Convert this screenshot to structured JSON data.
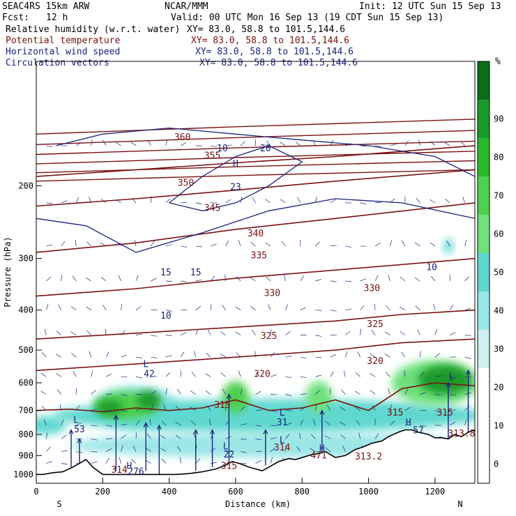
{
  "header": {
    "model": "SEAC4RS 15km ARW",
    "source": "NCAR/MMM",
    "init": "Init: 12 UTC Sun 15 Sep 13",
    "fcst_label": "Fcst:",
    "fcst_value": "12 h",
    "valid": "Valid: 00 UTC Mon 16 Sep 13 (19 CDT Sun 15 Sep 13)",
    "fields": [
      {
        "name": "Relative humidity (w.r.t. water)",
        "xy": "XY=  83.0, 58.8 to 101.5,144.6",
        "color": "#000000"
      },
      {
        "name": "Potential temperature",
        "xy": "XY=  83.0, 58.8 to 101.5,144.6",
        "color": "#7a1010"
      },
      {
        "name": "Horizontal wind speed",
        "xy": "XY=  83.0, 58.8 to 101.5,144.6",
        "color": "#1a237e"
      },
      {
        "name": "Circulation vectors",
        "xy": "XY=  83.0, 58.8 to 101.5,144.6",
        "color": "#1a237e"
      }
    ]
  },
  "chart_data": {
    "type": "cross-section",
    "xlabel": "Distance (km)",
    "ylabel": "Pressure (hPa)",
    "xlim": [
      0,
      1320
    ],
    "ylim": [
      1050,
      100
    ],
    "y_scale": "log",
    "x_ticks": [
      0,
      200,
      400,
      600,
      800,
      1000,
      1200
    ],
    "y_ticks": [
      200,
      300,
      400,
      500,
      600,
      700,
      800,
      900,
      1000
    ],
    "end_labels": {
      "left": "S",
      "right": "N"
    },
    "colorbar": {
      "unit": "%",
      "ticks": [
        0,
        10,
        20,
        30,
        40,
        50,
        60,
        70,
        80,
        90
      ],
      "colors": [
        "#ffffff",
        "#ffffff",
        "#ffffff",
        "#cfeef0",
        "#9be6e6",
        "#5ed8cf",
        "#6ee07c",
        "#4ecf4e",
        "#2cb82c",
        "#1a9a2a",
        "#0d6e1a"
      ]
    },
    "terrain_pressure": {
      "x": [
        0,
        20,
        50,
        80,
        110,
        150,
        170,
        200,
        260,
        300,
        360,
        420,
        460,
        500,
        540,
        570,
        590,
        610,
        640,
        680,
        700,
        730,
        760,
        780,
        800,
        830,
        850,
        870,
        900,
        930,
        960,
        980,
        1010,
        1040,
        1060,
        1090,
        1110,
        1130,
        1150,
        1180,
        1200,
        1220,
        1240,
        1260,
        1280,
        1300,
        1320
      ],
      "p": [
        1000,
        1000,
        990,
        985,
        960,
        920,
        960,
        1000,
        1000,
        1000,
        1000,
        1000,
        995,
        985,
        970,
        950,
        930,
        940,
        960,
        980,
        960,
        930,
        915,
        920,
        910,
        895,
        890,
        880,
        910,
        900,
        870,
        860,
        840,
        830,
        810,
        790,
        780,
        780,
        790,
        800,
        815,
        815,
        820,
        800,
        810,
        790,
        780
      ]
    },
    "theta_contours": [
      {
        "value": 345,
        "label": "345",
        "x": [
          0,
          300,
          600,
          900,
          1320
        ],
        "p": [
          190,
          183,
          176,
          170,
          160
        ]
      },
      {
        "value": 340,
        "label": "340",
        "x": [
          0,
          300,
          600,
          900,
          1320
        ],
        "p": [
          224,
          215,
          205,
          195,
          183
        ]
      },
      {
        "value": 335,
        "label": "335",
        "x": [
          0,
          300,
          600,
          900,
          1320
        ],
        "p": [
          290,
          275,
          255,
          240,
          220
        ]
      },
      {
        "value": 330,
        "label": "330",
        "x": [
          0,
          300,
          600,
          900,
          1320
        ],
        "p": [
          370,
          355,
          335,
          320,
          300
        ]
      },
      {
        "value": 325,
        "label": "325",
        "x": [
          0,
          300,
          600,
          900,
          1100,
          1320
        ],
        "p": [
          470,
          455,
          440,
          425,
          410,
          400
        ]
      },
      {
        "value": 320,
        "label": "320",
        "x": [
          0,
          300,
          600,
          900,
          1100,
          1320
        ],
        "p": [
          560,
          540,
          520,
          500,
          480,
          470
        ]
      },
      {
        "value": 315,
        "label": "315",
        "x": [
          0,
          100,
          200,
          300,
          400,
          500,
          600,
          700,
          800,
          900,
          1000,
          1100,
          1200,
          1320
        ],
        "p": [
          700,
          695,
          705,
          690,
          700,
          690,
          660,
          700,
          690,
          660,
          700,
          620,
          600,
          610
        ]
      }
    ],
    "wind_contours": [
      {
        "value": 10,
        "label": "10",
        "x": [
          60,
          200,
          400,
          600,
          800,
          1000,
          1200,
          1320
        ],
        "p": [
          160,
          150,
          145,
          150,
          155,
          160,
          170,
          190
        ]
      },
      {
        "value": 15,
        "label": "15",
        "x": [
          0,
          150,
          300,
          500,
          700,
          900,
          1100,
          1320
        ],
        "p": [
          240,
          250,
          290,
          260,
          230,
          215,
          220,
          240
        ]
      },
      {
        "value": 20,
        "label": "20",
        "x": [
          400,
          500,
          600,
          700,
          800,
          700,
          600,
          500,
          400
        ],
        "p": [
          220,
          190,
          170,
          160,
          175,
          200,
          220,
          230,
          220
        ]
      }
    ],
    "contour_labels": [
      {
        "text": "360",
        "x": 440,
        "p": 155
      },
      {
        "text": "355",
        "x": 530,
        "p": 172
      },
      {
        "text": "350",
        "x": 450,
        "p": 200
      },
      {
        "text": "345",
        "x": 530,
        "p": 230
      },
      {
        "text": "340",
        "x": 660,
        "p": 265
      },
      {
        "text": "335",
        "x": 670,
        "p": 300
      },
      {
        "text": "330",
        "x": 710,
        "p": 370
      },
      {
        "text": "330",
        "x": 1010,
        "p": 360
      },
      {
        "text": "325",
        "x": 700,
        "p": 470
      },
      {
        "text": "325",
        "x": 1020,
        "p": 440
      },
      {
        "text": "320",
        "x": 680,
        "p": 580
      },
      {
        "text": "320",
        "x": 1020,
        "p": 540
      },
      {
        "text": "315",
        "x": 560,
        "p": 690
      },
      {
        "text": "315",
        "x": 1080,
        "p": 720
      },
      {
        "text": "315",
        "x": 1230,
        "p": 720
      },
      {
        "text": "315",
        "x": 580,
        "p": 970
      },
      {
        "text": "10",
        "x": 560,
        "p": 165
      },
      {
        "text": "15",
        "x": 390,
        "p": 330
      },
      {
        "text": "15",
        "x": 480,
        "p": 330
      },
      {
        "text": "10",
        "x": 390,
        "p": 420
      },
      {
        "text": "20",
        "x": 690,
        "p": 165
      },
      {
        "text": "10",
        "x": 1190,
        "p": 320
      },
      {
        "text": "L",
        "x": 330,
        "p": 550
      },
      {
        "text": "42",
        "x": 340,
        "p": 580
      },
      {
        "text": "L",
        "x": 120,
        "p": 750
      },
      {
        "text": "53",
        "x": 130,
        "p": 790
      },
      {
        "text": "L",
        "x": 740,
        "p": 720
      },
      {
        "text": "31",
        "x": 740,
        "p": 760
      },
      {
        "text": "L",
        "x": 570,
        "p": 870
      },
      {
        "text": "22",
        "x": 580,
        "p": 910
      },
      {
        "text": "L",
        "x": 740,
        "p": 840
      },
      {
        "text": "314",
        "x": 740,
        "p": 875
      },
      {
        "text": "H",
        "x": 600,
        "p": 180
      },
      {
        "text": "23",
        "x": 600,
        "p": 205
      },
      {
        "text": "H",
        "x": 1120,
        "p": 760
      },
      {
        "text": "57",
        "x": 1150,
        "p": 795
      },
      {
        "text": "H",
        "x": 860,
        "p": 880
      },
      {
        "text": "471",
        "x": 850,
        "p": 915
      },
      {
        "text": "313.2",
        "x": 1000,
        "p": 920
      },
      {
        "text": "313.8",
        "x": 1280,
        "p": 810
      },
      {
        "text": "L",
        "x": 1250,
        "p": 590
      },
      {
        "text": "H",
        "x": 280,
        "p": 970
      },
      {
        "text": "314",
        "x": 250,
        "p": 990
      },
      {
        "text": "276",
        "x": 300,
        "p": 1000
      }
    ],
    "rh_blobs": [
      {
        "x": 300,
        "p": 690,
        "rx": 130,
        "rp": 90,
        "value": 30
      },
      {
        "x": 270,
        "p": 680,
        "rx": 95,
        "rp": 55,
        "value": 60
      },
      {
        "x": 220,
        "p": 690,
        "rx": 40,
        "rp": 30,
        "value": 80
      },
      {
        "x": 340,
        "p": 660,
        "rx": 35,
        "rp": 35,
        "value": 80
      },
      {
        "x": 600,
        "p": 650,
        "rx": 40,
        "rp": 60,
        "value": 60
      },
      {
        "x": 850,
        "p": 650,
        "rx": 40,
        "rp": 60,
        "value": 50
      },
      {
        "x": 1200,
        "p": 600,
        "rx": 130,
        "rp": 80,
        "value": 50
      },
      {
        "x": 1230,
        "p": 590,
        "rx": 80,
        "rp": 50,
        "value": 80
      },
      {
        "x": 1240,
        "p": 280,
        "rx": 15,
        "rp": 12,
        "value": 40
      },
      {
        "x": 30,
        "p": 760,
        "rx": 60,
        "rp": 40,
        "value": 40
      },
      {
        "x": 700,
        "p": 850,
        "rx": 600,
        "rp": 60,
        "value": 30
      },
      {
        "x": 700,
        "p": 720,
        "rx": 650,
        "rp": 70,
        "value": 40
      }
    ],
    "wind_vector_arrows": [
      {
        "x": 105,
        "from_p": 960,
        "to_p": 780
      },
      {
        "x": 130,
        "from_p": 940,
        "to_p": 820
      },
      {
        "x": 240,
        "from_p": 980,
        "to_p": 720
      },
      {
        "x": 330,
        "from_p": 980,
        "to_p": 750
      },
      {
        "x": 370,
        "from_p": 1000,
        "to_p": 760
      },
      {
        "x": 480,
        "from_p": 980,
        "to_p": 780
      },
      {
        "x": 530,
        "from_p": 960,
        "to_p": 780
      },
      {
        "x": 580,
        "from_p": 940,
        "to_p": 640
      },
      {
        "x": 690,
        "from_p": 950,
        "to_p": 780
      },
      {
        "x": 860,
        "from_p": 900,
        "to_p": 700
      },
      {
        "x": 1240,
        "from_p": 820,
        "to_p": 600
      },
      {
        "x": 1300,
        "from_p": 800,
        "to_p": 560
      }
    ]
  }
}
